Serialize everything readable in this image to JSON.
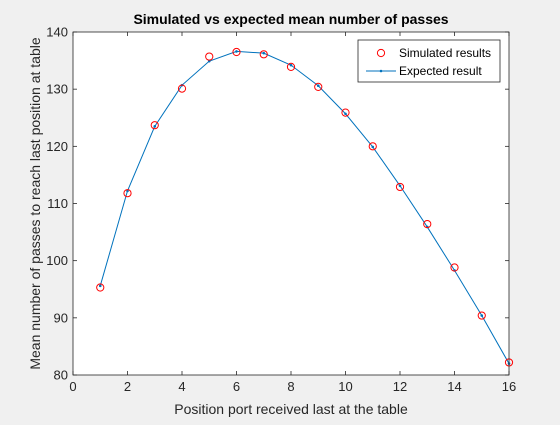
{
  "chart_data": {
    "type": "line",
    "title": "Simulated vs expected mean number of passes",
    "xlabel": "Position port received last at the table",
    "ylabel": "Mean number of passes to reach last position at table",
    "xlim": [
      0,
      16
    ],
    "ylim": [
      80,
      140
    ],
    "xticks": [
      0,
      2,
      4,
      6,
      8,
      10,
      12,
      14,
      16
    ],
    "yticks": [
      80,
      90,
      100,
      110,
      120,
      130,
      140
    ],
    "grid": false,
    "legend_position": "top-right",
    "x": [
      1,
      2,
      3,
      4,
      5,
      6,
      7,
      8,
      9,
      10,
      11,
      12,
      13,
      14,
      15,
      16
    ],
    "series": [
      {
        "name": "Simulated results",
        "style": "markers",
        "marker": "circle",
        "color": "#ff0000",
        "values": [
          95.3,
          111.8,
          123.7,
          130.1,
          135.7,
          136.5,
          136.1,
          133.9,
          130.4,
          125.9,
          120.0,
          112.9,
          106.4,
          98.8,
          90.4,
          82.2
        ]
      },
      {
        "name": "Expected result",
        "style": "line",
        "marker": "point",
        "color": "#0072bd",
        "values": [
          95.6,
          112.2,
          123.5,
          130.7,
          134.9,
          136.6,
          136.3,
          134.2,
          130.6,
          125.7,
          119.9,
          113.1,
          105.9,
          98.3,
          90.4,
          82.0
        ]
      }
    ]
  }
}
